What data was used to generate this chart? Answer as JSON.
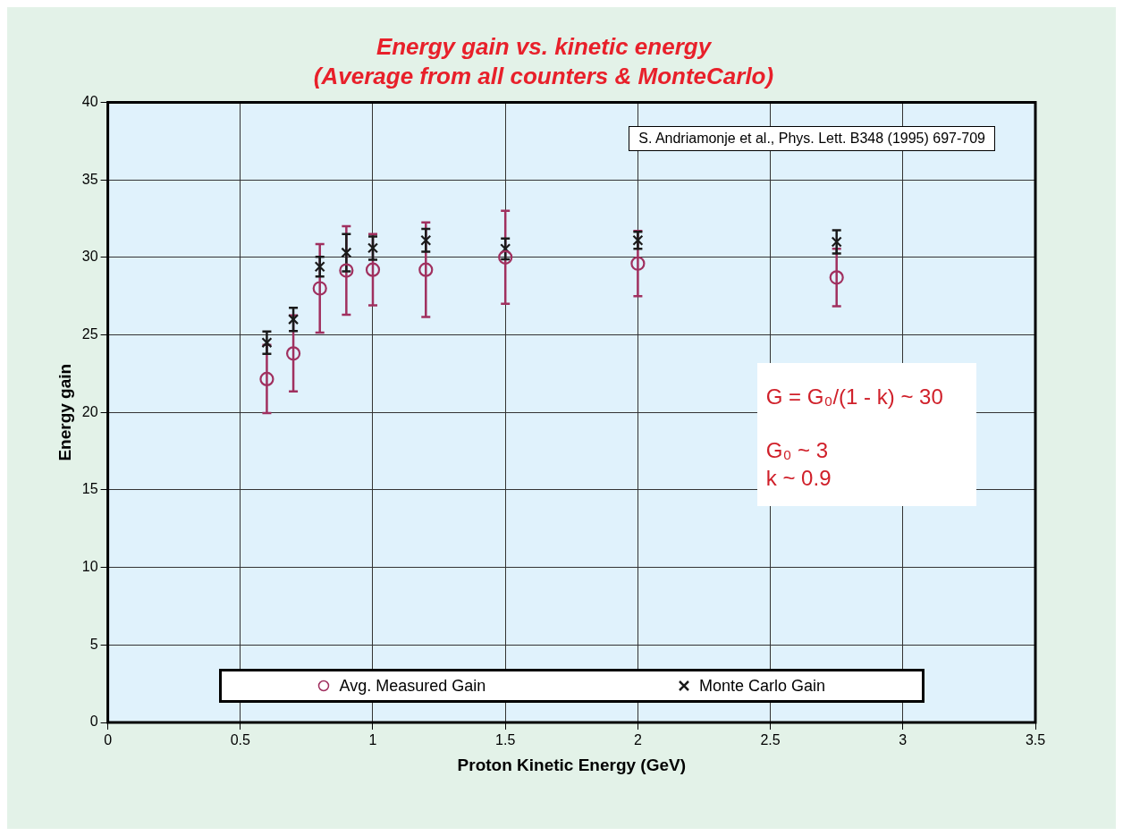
{
  "chart_data": {
    "type": "scatter",
    "title": "Energy gain vs. kinetic energy",
    "subtitle": "(Average from all counters & MonteCarlo)",
    "xlabel": "Proton Kinetic Energy (GeV)",
    "ylabel": "Energy gain",
    "x": [
      0.6,
      0.7,
      0.8,
      0.9,
      1.0,
      1.2,
      1.5,
      2.0,
      2.75
    ],
    "series": [
      {
        "name": "Avg. Measured Gain",
        "color": "#a0305f",
        "marker": "circle",
        "values": [
          22.15,
          23.8,
          28.0,
          29.15,
          29.2,
          29.2,
          30.0,
          29.6,
          28.7
        ],
        "errors": [
          2.2,
          2.45,
          2.85,
          2.85,
          2.3,
          3.05,
          3.0,
          2.1,
          1.85
        ]
      },
      {
        "name": "Monte Carlo Gain",
        "color": "#1a1a1a",
        "marker": "cross",
        "values": [
          24.5,
          26.0,
          29.4,
          30.3,
          30.6,
          31.1,
          30.55,
          31.1,
          31.0
        ],
        "errors": [
          0.72,
          0.75,
          0.63,
          1.2,
          0.75,
          0.74,
          0.67,
          0.55,
          0.75
        ]
      }
    ],
    "xlim": [
      0,
      3.5
    ],
    "xticks": [
      0,
      0.5,
      1,
      1.5,
      2,
      2.5,
      3,
      3.5
    ],
    "ylim": [
      0,
      40
    ],
    "yticks": [
      0,
      5,
      10,
      15,
      20,
      25,
      30,
      35,
      40
    ],
    "grid": true,
    "legend": "bottom",
    "annotations": [
      "S. Andriamonje et al., Phys. Lett. B348 (1995) 697-709",
      "G = G₀/(1 - k)  ~ 30",
      "G₀ ~  3",
      "k ~ 0.9"
    ]
  }
}
